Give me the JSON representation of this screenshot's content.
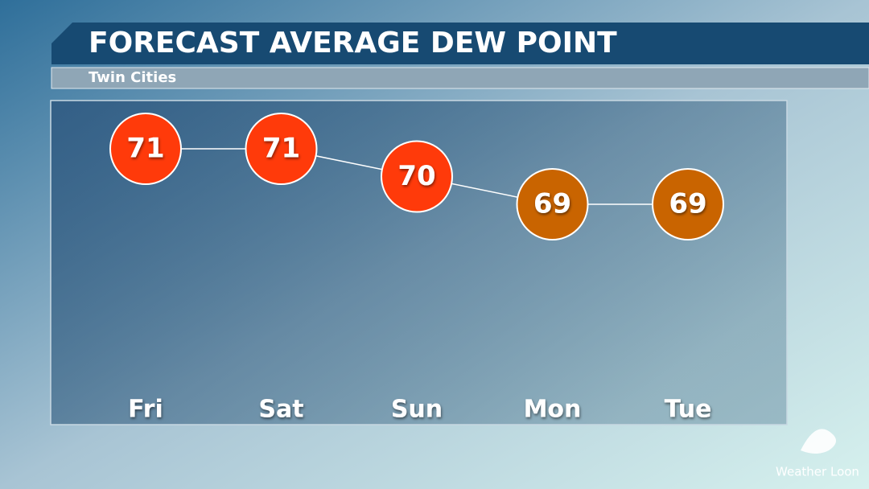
{
  "chart_data": {
    "type": "line",
    "title": "FORECAST AVERAGE DEW POINT",
    "subtitle": "Twin Cities",
    "categories": [
      "Fri",
      "Sat",
      "Sun",
      "Mon",
      "Tue"
    ],
    "values": [
      71,
      71,
      70,
      69,
      69
    ],
    "colors": [
      "#ff3a0a",
      "#ff3a0a",
      "#ff3a0a",
      "#c96400",
      "#c96400"
    ],
    "line_color": "#ffffff"
  },
  "branding": "Weather Loon"
}
